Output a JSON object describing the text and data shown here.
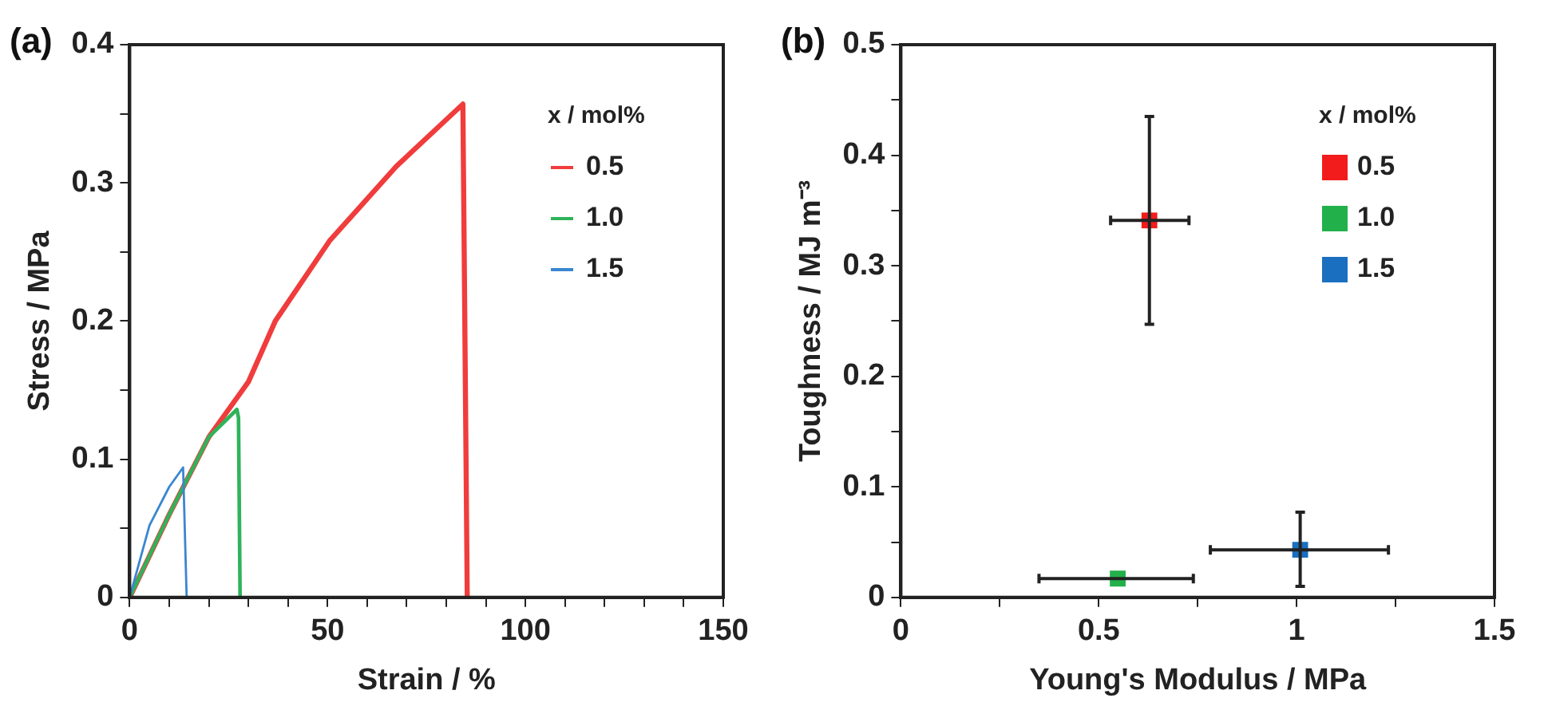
{
  "chart_data": [
    {
      "type": "line",
      "title": "(a)",
      "xlabel": "Strain / %",
      "ylabel": "Stress / MPa",
      "legend_title": "x / mol%",
      "legend": "top right",
      "grid": false,
      "marker": "none",
      "xlim": [
        0,
        150
      ],
      "ylim": [
        0,
        0.4
      ],
      "xticks": [
        0,
        {
          "value": 10,
          "label": null
        },
        {
          "value": 20,
          "label": null
        },
        {
          "value": 30,
          "label": null
        },
        {
          "value": 40,
          "label": null
        },
        50,
        {
          "value": 60,
          "label": null
        },
        {
          "value": 70,
          "label": null
        },
        {
          "value": 80,
          "label": null
        },
        {
          "value": 90,
          "label": null
        },
        100,
        {
          "value": 110,
          "label": null
        },
        {
          "value": 120,
          "label": null
        },
        {
          "value": 130,
          "label": null
        },
        {
          "value": 140,
          "label": null
        },
        150
      ],
      "yticks": [
        0,
        {
          "value": 0.05,
          "label": null
        },
        0.1,
        {
          "value": 0.15,
          "label": null
        },
        0.2,
        {
          "value": 0.25,
          "label": null
        },
        0.3,
        {
          "value": 0.35,
          "label": null
        },
        0.4
      ],
      "series": [
        {
          "name": "0.5",
          "color": "#f03c3c",
          "x": [
            0,
            5,
            10,
            20,
            30,
            36.8,
            50.5,
            67.4,
            84.2,
            85.3
          ],
          "values": [
            0,
            0.03,
            0.06,
            0.116,
            0.156,
            0.2,
            0.258,
            0.312,
            0.357,
            0
          ]
        },
        {
          "name": "1.0",
          "color": "#2fb35a",
          "x": [
            0,
            5,
            10,
            20,
            27.1,
            27.5,
            27.9
          ],
          "values": [
            0,
            0.03,
            0.06,
            0.116,
            0.136,
            0.13,
            0
          ]
        },
        {
          "name": "1.5",
          "color": "#3a86d0",
          "x": [
            0,
            5,
            10,
            13.5,
            14.4
          ],
          "values": [
            0,
            0.052,
            0.08,
            0.094,
            0
          ]
        }
      ]
    },
    {
      "type": "scatter",
      "title": "(b)",
      "xlabel": "Young's Modulus / MPa",
      "ylabel": "Toughness / MJ m⁻³",
      "legend_title": "x / mol%",
      "legend": "top right",
      "grid": false,
      "marker": "square",
      "xlim": [
        0,
        1.5
      ],
      "ylim": [
        0,
        0.5
      ],
      "xticks": [
        0,
        {
          "value": 0.25,
          "label": null
        },
        0.5,
        {
          "value": 0.75,
          "label": null
        },
        1,
        {
          "value": 1.25,
          "label": null
        },
        1.5
      ],
      "yticks": [
        0,
        {
          "value": 0.05,
          "label": null
        },
        0.1,
        {
          "value": 0.15,
          "label": null
        },
        0.2,
        {
          "value": 0.25,
          "label": null
        },
        0.3,
        {
          "value": 0.35,
          "label": null
        },
        0.4,
        {
          "value": 0.45,
          "label": null
        },
        0.5
      ],
      "series": [
        {
          "name": "0.5",
          "color": "#f21c1c",
          "x": [
            0.628
          ],
          "values": [
            0.341
          ],
          "errors": [
            [
              0.247,
              0.435
            ]
          ],
          "xerrors": [
            [
              0.53,
              0.728
            ]
          ]
        },
        {
          "name": "1.0",
          "color": "#22b04b",
          "x": [
            0.548
          ],
          "values": [
            0.017
          ],
          "errors": [
            null
          ],
          "xerrors": [
            [
              0.349,
              0.739
            ]
          ]
        },
        {
          "name": "1.5",
          "color": "#1a6fc0",
          "x": [
            1.009
          ],
          "values": [
            0.043
          ],
          "errors": [
            [
              0.01,
              0.077
            ]
          ],
          "xerrors": [
            [
              0.782,
              1.232
            ]
          ]
        }
      ]
    }
  ]
}
